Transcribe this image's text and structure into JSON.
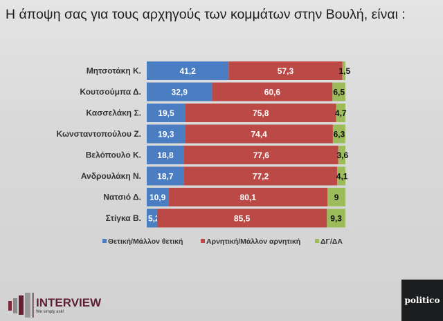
{
  "title": "Η άποψη σας για τους αρχηγούς των κομμάτων στην Βουλή,  είναι :",
  "chart_data": {
    "type": "bar",
    "orientation": "horizontal",
    "stacked": true,
    "categories": [
      "Μητσοτάκη Κ.",
      "Κουτσούμπα Δ.",
      "Κασσελάκη Σ.",
      "Κωνσταντοπούλου Ζ.",
      "Βελόπουλο Κ.",
      "Ανδρουλάκη Ν.",
      "Νατσιό Δ.",
      "Στίγκα Β."
    ],
    "series": [
      {
        "name": "Θετική/Μάλλον θετική",
        "color": "#4a7dc1",
        "values": [
          41.2,
          32.9,
          19.5,
          19.3,
          18.8,
          18.7,
          10.9,
          5.2
        ]
      },
      {
        "name": "Αρνητική/Μάλλον αρνητική",
        "color": "#bb4a47",
        "values": [
          57.3,
          60.6,
          75.8,
          74.4,
          77.6,
          77.2,
          80.1,
          85.5
        ]
      },
      {
        "name": "ΔΓ/ΔΑ",
        "color": "#9cbc5c",
        "values": [
          1.5,
          6.5,
          4.7,
          6.3,
          3.6,
          4.1,
          9,
          9.3
        ]
      }
    ],
    "data_labels": [
      [
        "41,2",
        "32,9",
        "19,5",
        "19,3",
        "18,8",
        "18,7",
        "10,9",
        "5,2"
      ],
      [
        "57,3",
        "60,6",
        "75,8",
        "74,4",
        "77,6",
        "77,2",
        "80,1",
        "85,5"
      ],
      [
        "1,5",
        "6,5",
        "4,7",
        "6,3",
        "3,6",
        "4,1",
        "9",
        "9,3"
      ]
    ],
    "xlim": [
      0,
      100
    ],
    "legend": "bottom",
    "grid": false
  },
  "logos": {
    "interview": "INTERVIEW",
    "interview_tagline": "We simply ask!",
    "politico": "politico"
  }
}
